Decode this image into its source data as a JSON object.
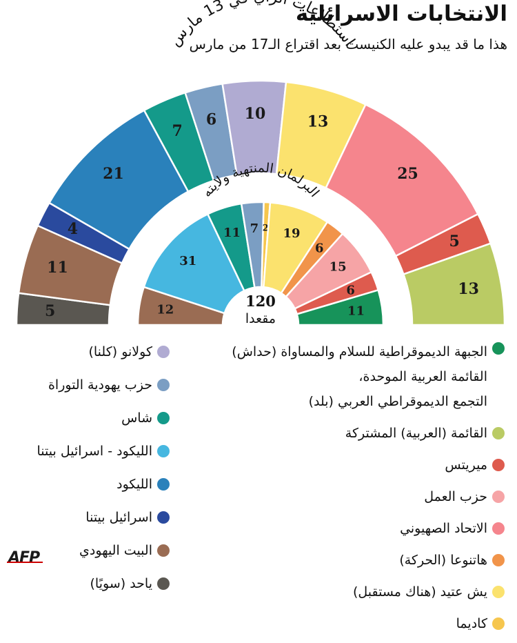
{
  "title": "الانتخابات الاسرائلية",
  "subtitle": "هذا ما قد يبدو عليه الكنيست بعد اقتراع الـ17 من مارس",
  "chart_data": [
    {
      "type": "pie",
      "title": "استطلاعات الرأي في 13 مارس",
      "categories": [
        "ياحد (سويًا)",
        "البيت اليهودي",
        "اسرائيل بيتنا",
        "الليكود",
        "شاس",
        "حزب يهودية التوراة",
        "كولانو (كلنا)",
        "يش عتيد (هناك مستقبل)",
        "الاتحاد الصهيوني",
        "ميريتس",
        "القائمة (العربية) المشتركة"
      ],
      "values": [
        5,
        11,
        4,
        21,
        7,
        6,
        10,
        13,
        25,
        5,
        13
      ],
      "colors": [
        "#5a5751",
        "#9a6c53",
        "#2a4a9e",
        "#2a81bb",
        "#149a8a",
        "#7b9ec3",
        "#b0abd2",
        "#fbe26e",
        "#f5858d",
        "#de5b4e",
        "#bacb64"
      ],
      "total": 120
    },
    {
      "type": "pie",
      "title": "البرلمان المنتهية ولايته",
      "center_value": "120",
      "center_label": "مقعدا",
      "categories": [
        "البيت اليهودي",
        "الليكود - اسرائيل بيتنا",
        "شاس",
        "حزب يهودية التوراة",
        "كاديما",
        "يش عتيد (هناك مستقبل)",
        "هاتنوعا (الحركة)",
        "حزب العمل",
        "ميريتس",
        "الجبهة الديموقراطية للسلام والمساواة (حداش) القائمة العربية الموحدة، التجمع الديموقراطي العربي (بلد)"
      ],
      "values": [
        12,
        31,
        11,
        7,
        2,
        19,
        6,
        15,
        6,
        11
      ],
      "colors": [
        "#9a6c53",
        "#46b7e0",
        "#149a8a",
        "#7b9ec3",
        "#f6c64e",
        "#fbe26e",
        "#f1944a",
        "#f6a4a6",
        "#de5b4e",
        "#17935a"
      ],
      "total": 120
    }
  ],
  "legend_right": [
    {
      "lines": [
        "الجبهة الديموقراطية للسلام والمساواة (حداش)",
        "القائمة العربية الموحدة،",
        "التجمع الديموقراطي العربي (بلد)"
      ],
      "color": "#17935a"
    },
    {
      "lines": [
        "القائمة (العربية) المشتركة"
      ],
      "color": "#bacb64"
    },
    {
      "lines": [
        "ميريتس"
      ],
      "color": "#de5b4e"
    },
    {
      "lines": [
        "حزب العمل"
      ],
      "color": "#f6a4a6"
    },
    {
      "lines": [
        "الاتحاد الصهيوني"
      ],
      "color": "#f5858d"
    },
    {
      "lines": [
        "هاتنوعا (الحركة)"
      ],
      "color": "#f1944a"
    },
    {
      "lines": [
        "يش عتيد (هناك مستقبل)"
      ],
      "color": "#fbe26e"
    },
    {
      "lines": [
        "كاديما"
      ],
      "color": "#f6c64e"
    }
  ],
  "legend_left": [
    {
      "lines": [
        "كولانو (كلنا)"
      ],
      "color": "#b0abd2"
    },
    {
      "lines": [
        "حزب يهودية التوراة"
      ],
      "color": "#7b9ec3"
    },
    {
      "lines": [
        "شاس"
      ],
      "color": "#149a8a"
    },
    {
      "lines": [
        "الليكود - اسرائيل بيتنا"
      ],
      "color": "#46b7e0"
    },
    {
      "lines": [
        "الليكود"
      ],
      "color": "#2a81bb"
    },
    {
      "lines": [
        "اسرائيل بيتنا"
      ],
      "color": "#2a4a9e"
    },
    {
      "lines": [
        "البيت اليهودي"
      ],
      "color": "#9a6c53"
    },
    {
      "lines": [
        "ياحد (سويًا)"
      ],
      "color": "#5a5751"
    }
  ],
  "logo": "AFP"
}
